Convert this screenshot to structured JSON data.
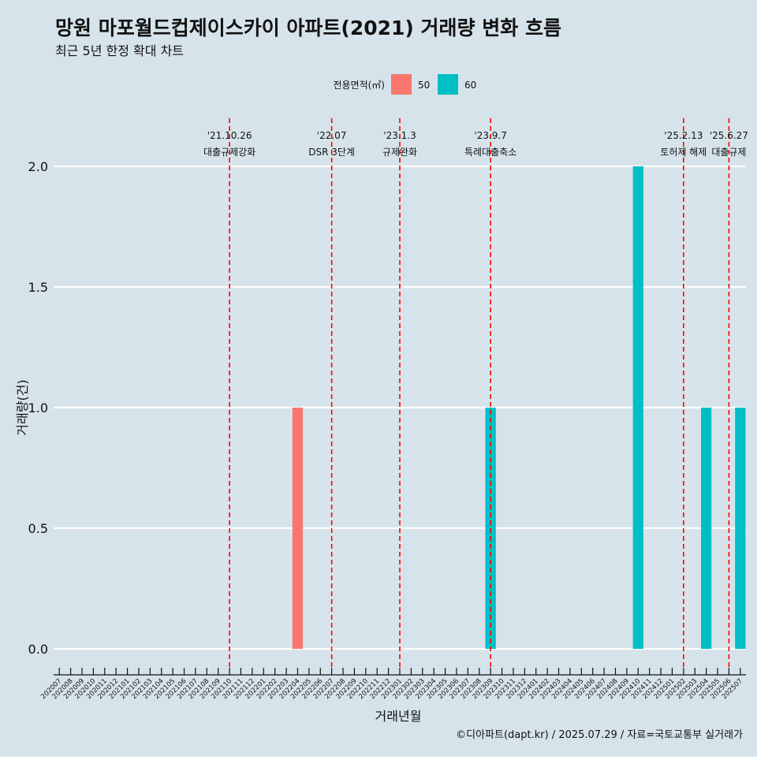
{
  "colors": {
    "background": "#d6e3ea",
    "grid": "#ffffff",
    "series_50": "#f8766d",
    "series_60": "#00bfc4",
    "event_line": "#ff0000",
    "text": "#111111",
    "axis": "#111111"
  },
  "chart_data": {
    "type": "bar",
    "title": "망원 마포월드컵제이스카이 아파트(2021) 거래량 변화 흐름",
    "subtitle": "최근 5년 한정 확대 차트",
    "xlabel": "거래년월",
    "ylabel": "거래량(건)",
    "caption": "©디아파트(dapt.kr) / 2025.07.29 / 자료=국토교통부 실거래가",
    "legend": {
      "title": "전용면적(㎡)",
      "position": "top",
      "entries": [
        {
          "key": "50",
          "label": "50",
          "color": "#f8766d"
        },
        {
          "key": "60",
          "label": "60",
          "color": "#00bfc4"
        }
      ]
    },
    "ylim": [
      0,
      2
    ],
    "yticks": [
      0,
      0.5,
      1,
      1.5,
      2
    ],
    "ytick_labels": [
      "0.0",
      "0.5",
      "1.0",
      "1.5",
      "2.0"
    ],
    "categories": [
      "202007",
      "202008",
      "202009",
      "202010",
      "202011",
      "202012",
      "202101",
      "202102",
      "202103",
      "202104",
      "202105",
      "202106",
      "202107",
      "202108",
      "202109",
      "202110",
      "202111",
      "202112",
      "202201",
      "202202",
      "202203",
      "202204",
      "202205",
      "202206",
      "202207",
      "202208",
      "202209",
      "202210",
      "202211",
      "202212",
      "202301",
      "202302",
      "202303",
      "202304",
      "202305",
      "202306",
      "202307",
      "202308",
      "202309",
      "202310",
      "202311",
      "202312",
      "202401",
      "202402",
      "202403",
      "202404",
      "202405",
      "202406",
      "202407",
      "202408",
      "202409",
      "202410",
      "202411",
      "202412",
      "202501",
      "202502",
      "202503",
      "202504",
      "202505",
      "202506",
      "202507"
    ],
    "bars": [
      {
        "x": "202204",
        "series": "50",
        "value": 1
      },
      {
        "x": "202309",
        "series": "60",
        "value": 1
      },
      {
        "x": "202410",
        "series": "60",
        "value": 2
      },
      {
        "x": "202504",
        "series": "60",
        "value": 1
      },
      {
        "x": "202507",
        "series": "60",
        "value": 1
      }
    ],
    "events": [
      {
        "x": "202110",
        "date": "'21.10.26",
        "label": "대출규제강화"
      },
      {
        "x": "202207",
        "date": "'22.07",
        "label": "DSR 3단계"
      },
      {
        "x": "202301",
        "date": "'23.1.3",
        "label": "규제완화"
      },
      {
        "x": "202309",
        "date": "'23.9.7",
        "label": "특례대출축소"
      },
      {
        "x": "202502",
        "date": "'25.2.13",
        "label": "토허제 해제"
      },
      {
        "x": "202506",
        "date": "'25.6.27",
        "label": "대출규제"
      }
    ],
    "grid": true
  }
}
